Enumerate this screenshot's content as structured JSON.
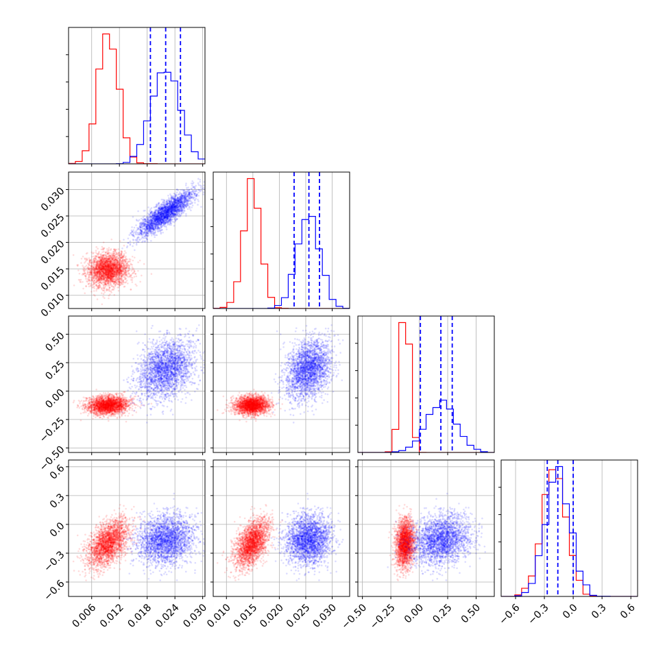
{
  "colors": {
    "series_a": "#ff0000",
    "series_b": "#0000ff",
    "grid": "#b0b0b0",
    "axis": "#000000"
  },
  "chart_data": {
    "type": "corner",
    "grid": true,
    "quantile_lines": {
      "series": "blue",
      "style": "dashed"
    },
    "parameters": [
      {
        "ticks": [
          "0.006",
          "0.012",
          "0.018",
          "0.024",
          "0.030"
        ],
        "tick_values": [
          0.006,
          0.012,
          0.018,
          0.024,
          0.03
        ],
        "range": [
          0.001,
          0.0305
        ]
      },
      {
        "ticks": [
          "0.010",
          "0.015",
          "0.020",
          "0.025",
          "0.030"
        ],
        "tick_values": [
          0.01,
          0.015,
          0.02,
          0.025,
          0.03
        ],
        "range": [
          0.0075,
          0.0333
        ]
      },
      {
        "ticks": [
          "−0.50",
          "−0.25",
          "0.00",
          "0.25",
          "0.50"
        ],
        "tick_values": [
          -0.5,
          -0.25,
          0.0,
          0.25,
          0.5
        ],
        "range": [
          -0.54,
          0.66
        ]
      },
      {
        "ticks": [
          "−0.6",
          "−0.3",
          "0.0",
          "0.3",
          "0.6"
        ],
        "tick_values": [
          -0.6,
          -0.3,
          0.0,
          0.3,
          0.6
        ],
        "range": [
          -0.75,
          0.67
        ]
      }
    ],
    "series": [
      {
        "color": "red",
        "mean": [
          0.0095,
          0.0148,
          -0.125,
          -0.2
        ],
        "sd": [
          0.0022,
          0.0016,
          0.04,
          0.12
        ],
        "correlation": [
          [
            1,
            0.1,
            0.1,
            0.5
          ],
          [
            0.1,
            1,
            0.05,
            0.5
          ],
          [
            0.1,
            0.05,
            1,
            0.1
          ],
          [
            0.5,
            0.5,
            0.1,
            1
          ]
        ]
      },
      {
        "color": "blue",
        "mean": [
          0.022,
          0.0255,
          0.19,
          -0.16
        ],
        "sd": [
          0.003,
          0.0021,
          0.13,
          0.13
        ],
        "correlation": [
          [
            1,
            0.85,
            0.3,
            0.1
          ],
          [
            0.85,
            1,
            0.3,
            0.05
          ],
          [
            0.3,
            0.3,
            1,
            0.2
          ],
          [
            0.1,
            0.05,
            0.2,
            1
          ]
        ],
        "quantiles": [
          [
            0.0187,
            0.022,
            0.0252
          ],
          [
            0.0228,
            0.0256,
            0.0276
          ],
          [
            0.01,
            0.19,
            0.29
          ],
          [
            -0.27,
            -0.16,
            0.0
          ]
        ]
      }
    ]
  }
}
